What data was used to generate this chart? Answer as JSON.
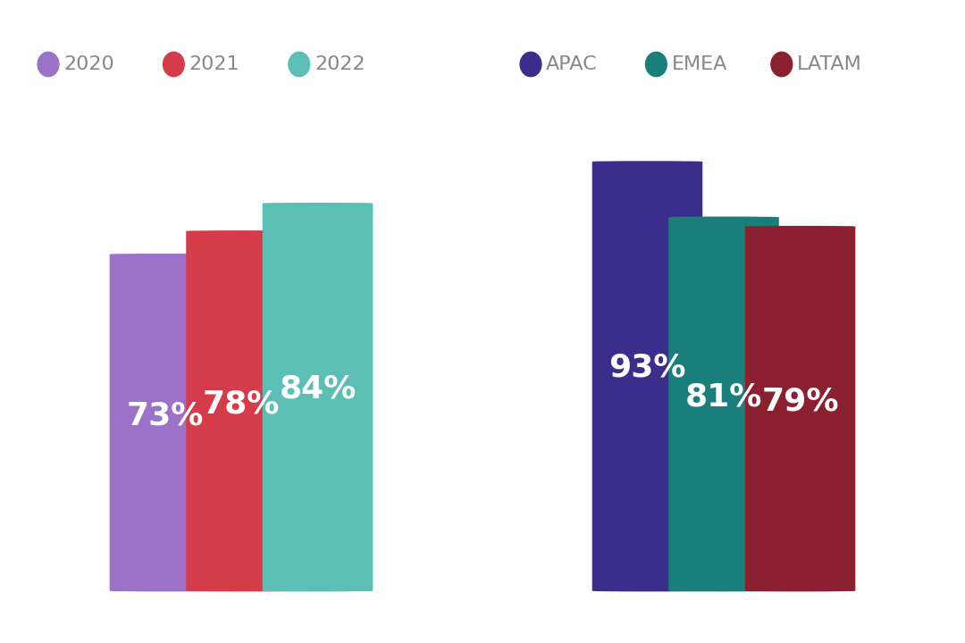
{
  "left_bars": [
    {
      "label": "2020",
      "value": 73,
      "color": "#9b72c8"
    },
    {
      "label": "2021",
      "value": 78,
      "color": "#d63b4a"
    },
    {
      "label": "2022",
      "value": 84,
      "color": "#5bbfb5"
    }
  ],
  "right_bars": [
    {
      "label": "APAC",
      "value": 93,
      "color": "#3b2d8c"
    },
    {
      "label": "EMEA",
      "value": 81,
      "color": "#1a7f7a"
    },
    {
      "label": "LATAM",
      "value": 79,
      "color": "#8b2030"
    }
  ],
  "background_color": "#ffffff",
  "text_color": "#ffffff",
  "legend_text_color": "#888888",
  "label_fontsize": 26,
  "legend_fontsize": 16
}
